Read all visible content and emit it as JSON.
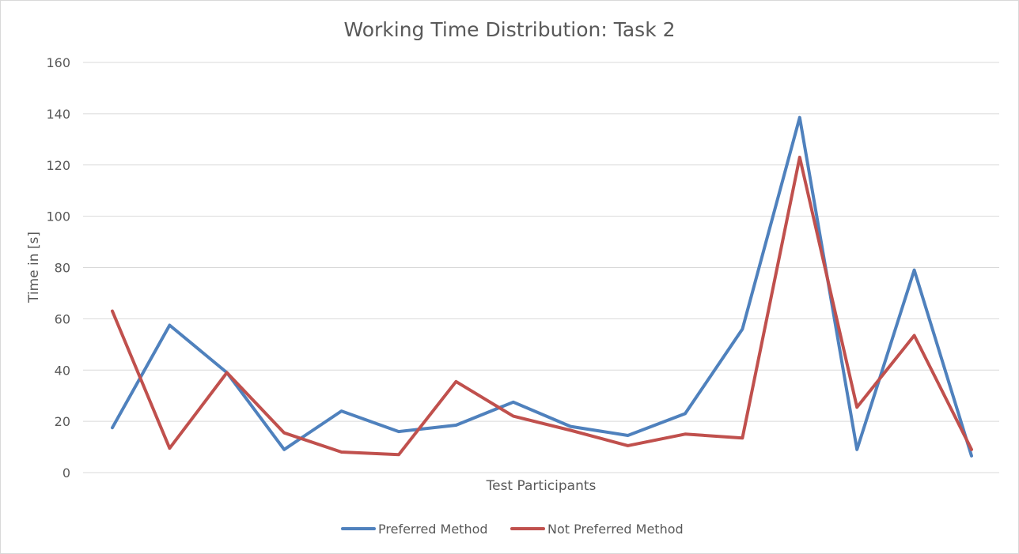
{
  "chart_data": {
    "type": "line",
    "title": "Working Time Distribution: Task 2",
    "xlabel": "Test Participants",
    "ylabel": "Time in [s]",
    "ylim": [
      0,
      160
    ],
    "yticks": [
      0,
      20,
      40,
      60,
      80,
      100,
      120,
      140,
      160
    ],
    "grid": true,
    "legend_position": "bottom",
    "x": [
      1,
      2,
      3,
      4,
      5,
      6,
      7,
      8,
      9,
      10,
      11,
      12,
      13,
      14,
      15,
      16
    ],
    "series": [
      {
        "name": "Preferred Method",
        "color": "#4f81bd",
        "values": [
          17.5,
          57.5,
          39,
          9,
          24,
          16,
          18.5,
          27.5,
          18,
          14.5,
          23,
          56,
          138.5,
          9,
          79,
          6.5
        ]
      },
      {
        "name": "Not Preferred Method",
        "color": "#c0504d",
        "values": [
          63,
          9.5,
          39,
          15.5,
          8,
          7,
          35.5,
          22,
          16.5,
          10.5,
          15,
          13.5,
          123,
          25.5,
          53.5,
          9
        ]
      }
    ]
  }
}
